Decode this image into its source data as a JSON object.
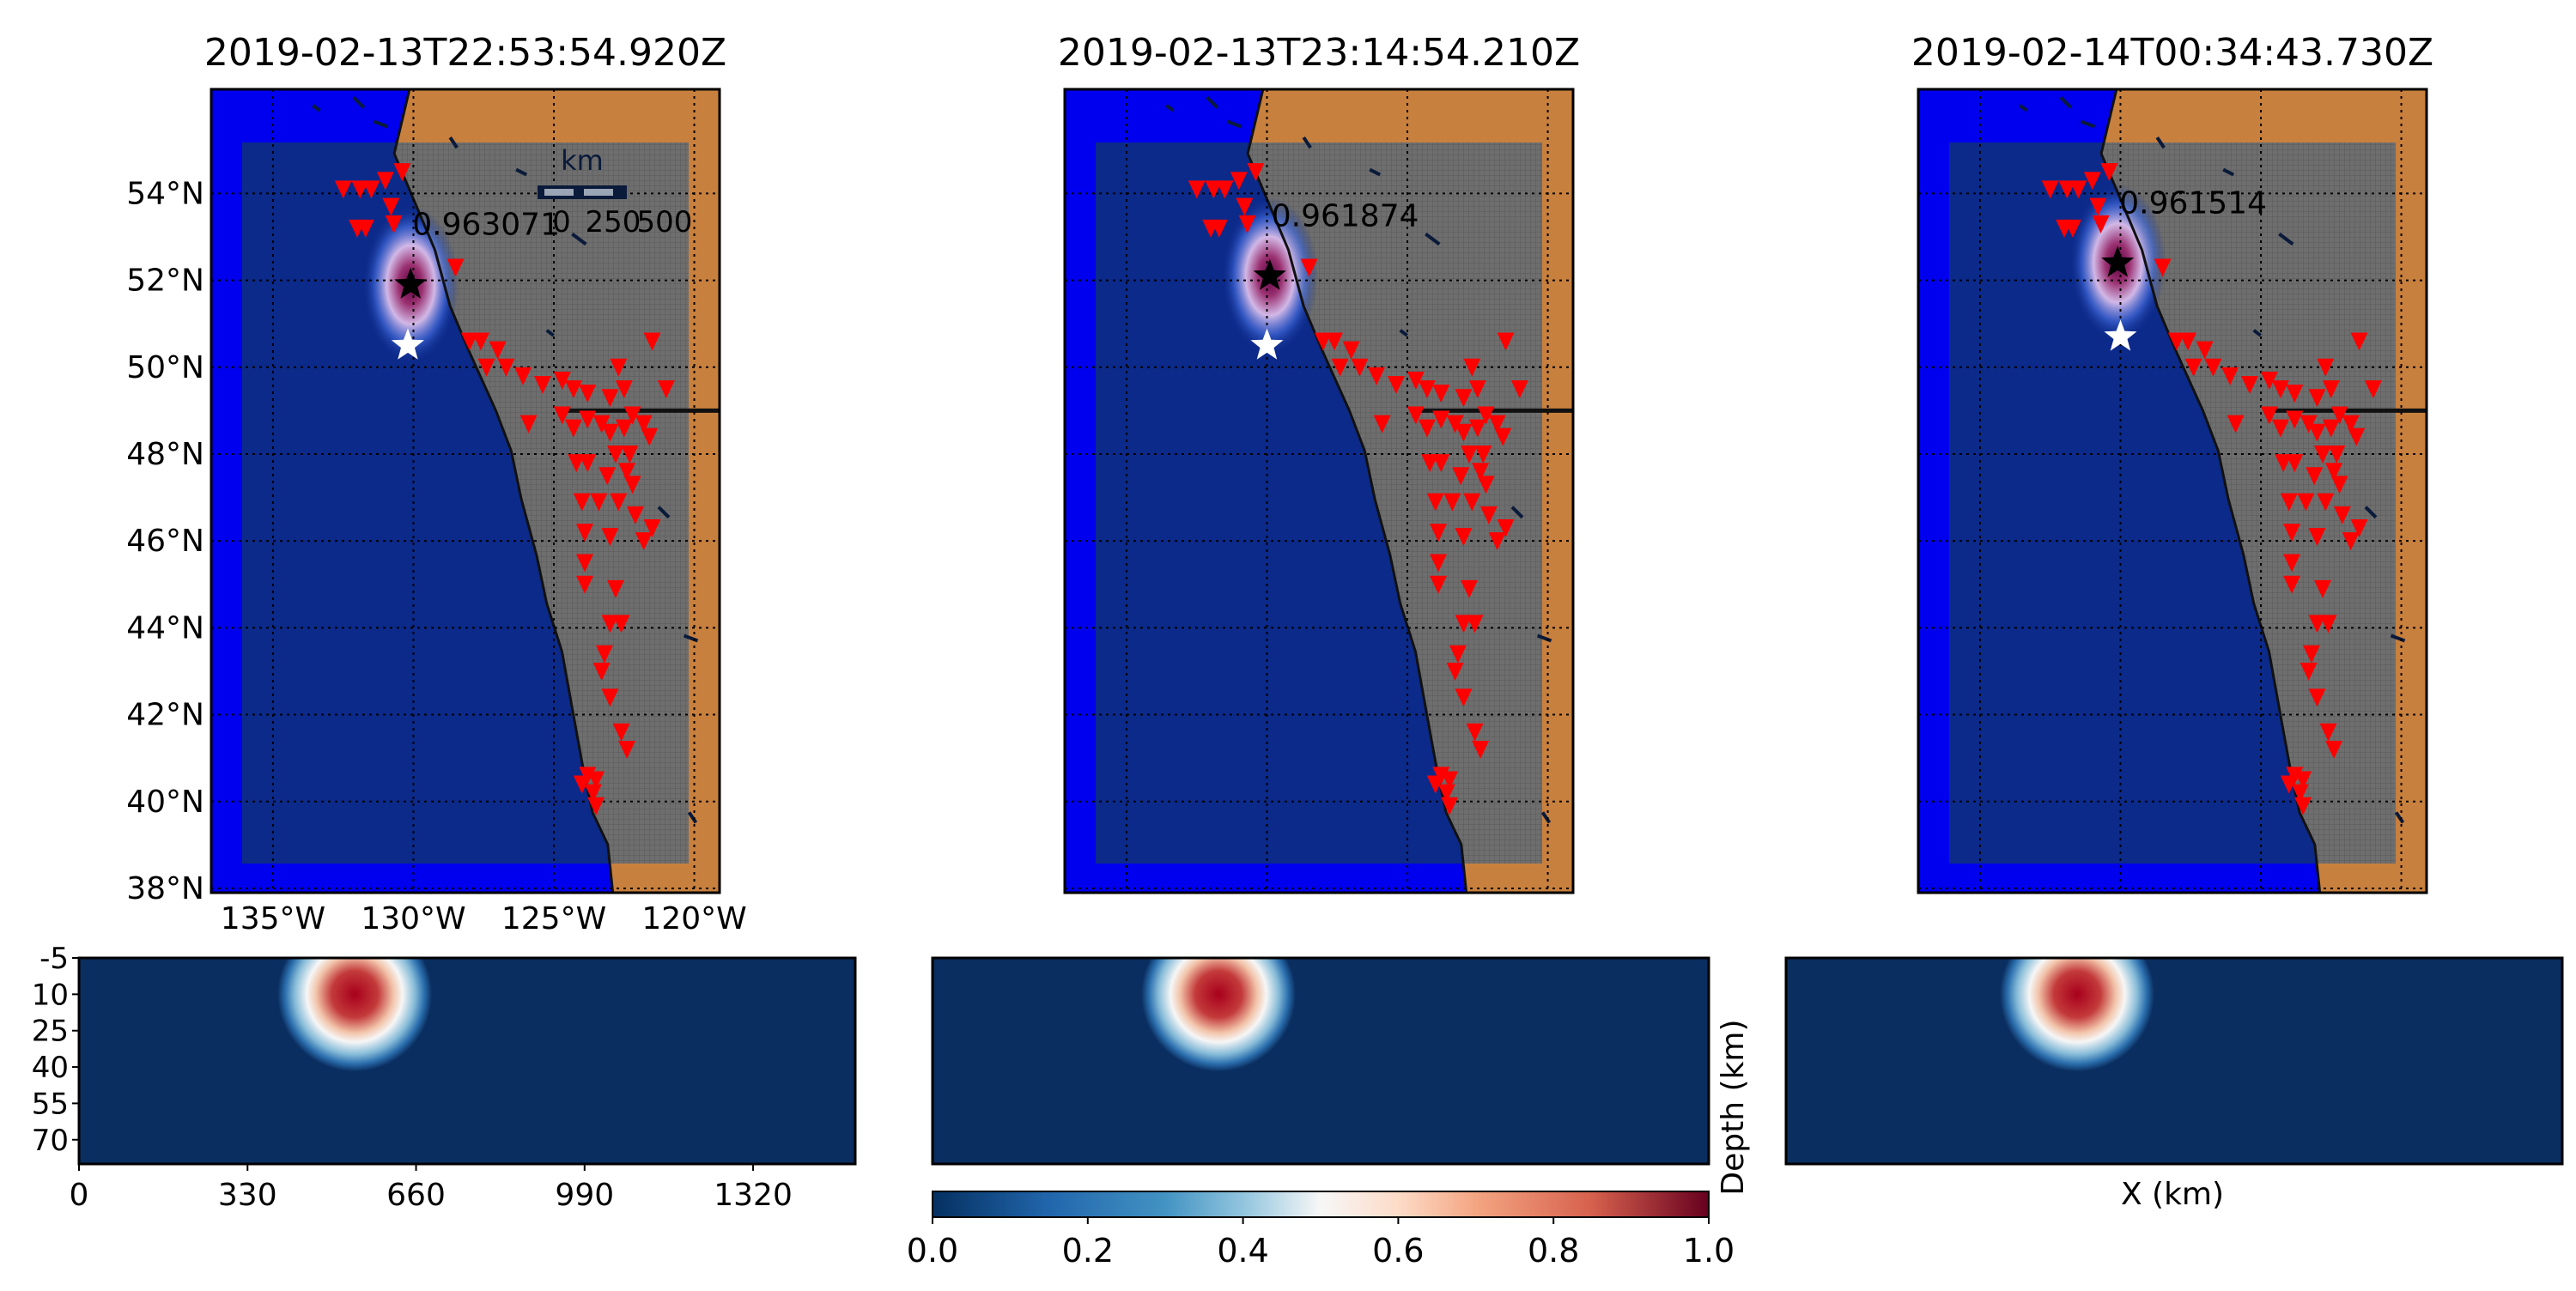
{
  "panels": [
    {
      "title": "2019-02-13T22:53:54.920Z",
      "prob_label": "0.963071",
      "pred_lon": -130.1,
      "pred_lat": 51.9,
      "true_lon": -130.2,
      "true_lat": 50.5,
      "depth_center_x": 540,
      "depth_center_z": 10
    },
    {
      "title": "2019-02-13T23:14:54.210Z",
      "prob_label": "0.961874",
      "pred_lon": -129.9,
      "pred_lat": 52.1,
      "true_lon": -130.0,
      "true_lat": 50.5,
      "depth_center_x": 560,
      "depth_center_z": 10
    },
    {
      "title": "2019-02-14T00:34:43.730Z",
      "prob_label": "0.961514",
      "pred_lon": -130.1,
      "pred_lat": 52.4,
      "true_lon": -130.0,
      "true_lat": 50.7,
      "depth_center_x": 570,
      "depth_center_z": 10
    }
  ],
  "map_axes": {
    "lat_ticks": [
      "54°N",
      "52°N",
      "50°N",
      "48°N",
      "46°N",
      "44°N",
      "42°N",
      "40°N",
      "38°N"
    ],
    "lon_ticks": [
      "135°W",
      "130°W",
      "125°W",
      "120°W"
    ]
  },
  "scalebar": {
    "unit": "km",
    "labels": [
      "0",
      "250",
      "500"
    ]
  },
  "depth_axes": {
    "y_ticks": [
      "-5",
      "10",
      "25",
      "40",
      "55",
      "70"
    ],
    "x_ticks": [
      "0",
      "330",
      "660",
      "990",
      "1320"
    ],
    "ylabel": "Depth (km)",
    "xlabel": "X (km)"
  },
  "colorbar": {
    "ticks": [
      "0.0",
      "0.2",
      "0.4",
      "0.6",
      "0.8",
      "1.0"
    ],
    "cmap": "RdBu_r"
  },
  "stations": [
    [
      -132.5,
      54.1
    ],
    [
      -131.9,
      54.1
    ],
    [
      -131.5,
      54.1
    ],
    [
      -131.0,
      54.3
    ],
    [
      -130.4,
      54.5
    ],
    [
      -132.0,
      53.2
    ],
    [
      -131.7,
      53.2
    ],
    [
      -130.8,
      53.7
    ],
    [
      -130.7,
      53.3
    ],
    [
      -128.5,
      52.3
    ],
    [
      -128.0,
      50.6
    ],
    [
      -127.6,
      50.6
    ],
    [
      -127.0,
      50.4
    ],
    [
      -127.4,
      50.0
    ],
    [
      -126.7,
      50.0
    ],
    [
      -126.1,
      49.8
    ],
    [
      -125.4,
      49.6
    ],
    [
      -124.7,
      49.7
    ],
    [
      -124.3,
      49.5
    ],
    [
      -123.8,
      49.4
    ],
    [
      -123.0,
      49.3
    ],
    [
      -122.5,
      49.5
    ],
    [
      -122.7,
      50.0
    ],
    [
      -121.5,
      50.6
    ],
    [
      -121.0,
      49.5
    ],
    [
      -125.9,
      48.7
    ],
    [
      -124.7,
      48.9
    ],
    [
      -124.3,
      48.6
    ],
    [
      -123.8,
      48.8
    ],
    [
      -123.3,
      48.7
    ],
    [
      -123.0,
      48.5
    ],
    [
      -122.5,
      48.6
    ],
    [
      -122.2,
      48.9
    ],
    [
      -121.8,
      48.7
    ],
    [
      -121.6,
      48.4
    ],
    [
      -122.8,
      48.0
    ],
    [
      -122.3,
      48.0
    ],
    [
      -124.2,
      47.8
    ],
    [
      -123.8,
      47.8
    ],
    [
      -123.1,
      47.5
    ],
    [
      -122.4,
      47.6
    ],
    [
      -122.2,
      47.3
    ],
    [
      -124.0,
      46.9
    ],
    [
      -123.4,
      46.9
    ],
    [
      -122.7,
      46.9
    ],
    [
      -122.1,
      46.6
    ],
    [
      -121.5,
      46.3
    ],
    [
      -121.8,
      46.0
    ],
    [
      -123.9,
      46.2
    ],
    [
      -123.0,
      46.1
    ],
    [
      -123.9,
      45.5
    ],
    [
      -123.9,
      45.0
    ],
    [
      -122.8,
      44.9
    ],
    [
      -123.0,
      44.1
    ],
    [
      -122.6,
      44.1
    ],
    [
      -123.2,
      43.4
    ],
    [
      -123.3,
      43.0
    ],
    [
      -123.0,
      42.4
    ],
    [
      -122.6,
      41.6
    ],
    [
      -122.4,
      41.2
    ],
    [
      -123.8,
      40.6
    ],
    [
      -123.5,
      40.5
    ],
    [
      -124.0,
      40.4
    ],
    [
      -123.6,
      40.2
    ],
    [
      -123.5,
      39.9
    ]
  ],
  "colors": {
    "ocean": "#0c2a8a",
    "ocean_edge": "#0000ee",
    "land": "#c8803e",
    "grid_land": "#707070",
    "station": "#ff0000",
    "pred_star": "#000000",
    "true_star": "#ffffff",
    "depth_bg": "#0a2e60"
  }
}
